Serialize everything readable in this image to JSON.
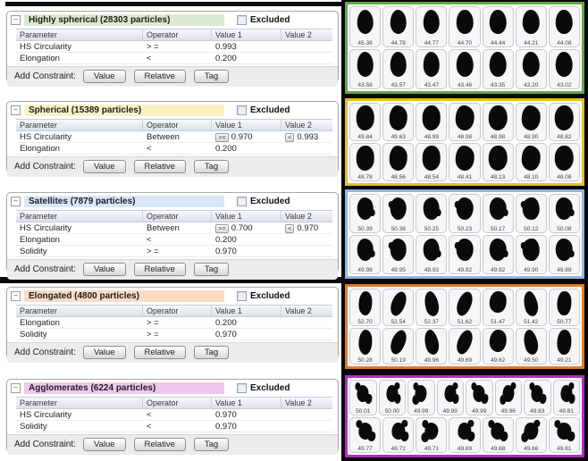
{
  "common": {
    "columns": [
      "Parameter",
      "Operator",
      "Value 1",
      "Value 2"
    ],
    "excluded_label": "Excluded",
    "add_constraint_label": "Add Constraint:",
    "buttons": [
      "Value",
      "Relative",
      "Tag"
    ],
    "collapse_glyph": "−"
  },
  "panels": [
    {
      "title": "Highly spherical (28303 particles)",
      "header_bg": "#dde9cf",
      "grid_border": "#60a848",
      "rows": [
        {
          "parameter": "HS Circularity",
          "operator": "> =",
          "v1": "0.993",
          "v2": ""
        },
        {
          "parameter": "Elongation",
          "operator": "<",
          "v1": "0.200",
          "v2": ""
        }
      ],
      "particles": [
        [
          "45.38",
          "44.78",
          "44.77",
          "44.70",
          "44.44",
          "44.21",
          "44.08"
        ],
        [
          "43.58",
          "43.57",
          "43.47",
          "43.46",
          "43.35",
          "43.20",
          "43.02"
        ]
      ]
    },
    {
      "title": "Spherical (15389 particles)",
      "header_bg": "#fbf2c4",
      "grid_border": "#e4be2b",
      "rows": [
        {
          "parameter": "HS Circularity",
          "operator": "Between",
          "v1_prefix": ">=",
          "v1": "0.970",
          "v2_prefix": "<",
          "v2": "0.993"
        },
        {
          "parameter": "Elongation",
          "operator": "<",
          "v1": "0.200",
          "v2": ""
        }
      ],
      "particles": [
        [
          "49.84",
          "49.63",
          "48.99",
          "48.98",
          "48.98",
          "48.90",
          "48.82"
        ],
        [
          "48.78",
          "48.56",
          "48.54",
          "48.41",
          "48.13",
          "48.10",
          "48.08"
        ]
      ]
    },
    {
      "title": "Satellites (7879 particles)",
      "header_bg": "#d9e7f6",
      "grid_border": "#8fb8e0",
      "rows": [
        {
          "parameter": "HS Circularity",
          "operator": "Between",
          "v1_prefix": ">=",
          "v1": "0.700",
          "v2_prefix": "<",
          "v2": "0.970"
        },
        {
          "parameter": "Elongation",
          "operator": "<",
          "v1": "0.200",
          "v2": ""
        },
        {
          "parameter": "Solidity",
          "operator": "> =",
          "v1": "0.970",
          "v2": ""
        }
      ],
      "particles": [
        [
          "50.39",
          "50.36",
          "50.25",
          "50.23",
          "50.17",
          "50.12",
          "50.08"
        ],
        [
          "49.98",
          "49.95",
          "49.93",
          "49.92",
          "49.92",
          "49.90",
          "49.89"
        ]
      ]
    },
    {
      "title": "Elongated (4800 particles)",
      "header_bg": "#f8dcc3",
      "grid_border": "#dd7b2d",
      "rows": [
        {
          "parameter": "Elongation",
          "operator": "> =",
          "v1": "0.200",
          "v2": ""
        },
        {
          "parameter": "Solidity",
          "operator": "> =",
          "v1": "0.970",
          "v2": ""
        }
      ],
      "particles": [
        [
          "52.70",
          "52.54",
          "52.37",
          "51.62",
          "51.47",
          "51.42",
          "50.77"
        ],
        [
          "50.28",
          "50.19",
          "49.96",
          "49.69",
          "49.62",
          "49.50",
          "49.21"
        ]
      ]
    },
    {
      "title": "Agglomerates (6224 particles)",
      "header_bg": "#f1c7ee",
      "grid_border": "#b32cc4",
      "rows": [
        {
          "parameter": "HS Circularity",
          "operator": "<",
          "v1": "0.970",
          "v2": ""
        },
        {
          "parameter": "Solidity",
          "operator": "<",
          "v1": "0.970",
          "v2": ""
        }
      ],
      "particles": [
        [
          "50.01",
          "50.00",
          "49.99",
          "49.99",
          "49.99",
          "49.96",
          "49.83",
          "49.81"
        ],
        [
          "49.77",
          "49.72",
          "49.71",
          "49.69",
          "49.68",
          "49.66",
          "49.61"
        ]
      ]
    }
  ]
}
